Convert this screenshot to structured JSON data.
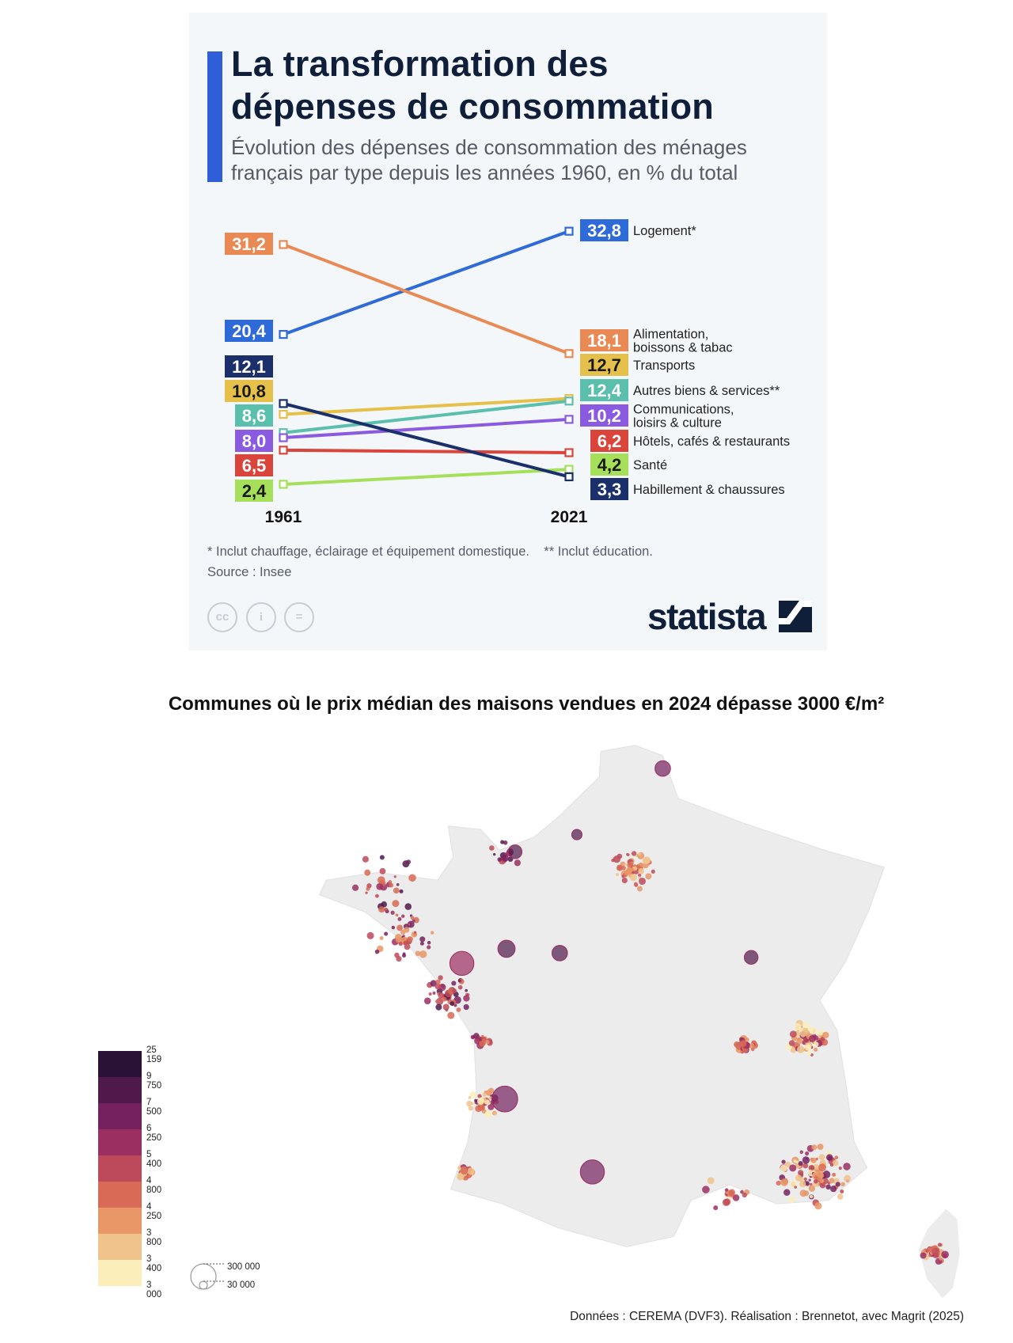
{
  "infographic": {
    "title_line1": "La transformation des",
    "title_line2": "dépenses de consommation",
    "subtitle_line1": "Évolution des dépenses de consommation des ménages",
    "subtitle_line2": "français par type depuis les années 1960, en % du total",
    "footnote": "* Inclut chauffage, éclairage et équipement domestique.    ** Inclut éducation.",
    "source": "Source : Insee",
    "license_icons": [
      "cc-icon",
      "by-icon",
      "nd-icon"
    ],
    "license_glyphs": [
      "cc",
      "i",
      "="
    ],
    "logo": "statista"
  },
  "chart_data": [
    {
      "type": "line",
      "subtype": "slope",
      "title": "La transformation des dépenses de consommation",
      "x": [
        "1961",
        "2021"
      ],
      "ylabel": "% du total",
      "series": [
        {
          "name": "Logement*",
          "values": [
            20.4,
            32.8
          ],
          "labels": [
            "20,4",
            "32,8"
          ],
          "color": "#2f6ad9",
          "text_color": "#ffffff"
        },
        {
          "name": "Alimentation, boissons & tabac",
          "values": [
            31.2,
            18.1
          ],
          "labels": [
            "31,2",
            "18,1"
          ],
          "color": "#e98a55",
          "text_color": "#ffffff"
        },
        {
          "name": "Transports",
          "values": [
            10.8,
            12.7
          ],
          "labels": [
            "10,8",
            "12,7"
          ],
          "color": "#e5c04a",
          "text_color": "#1a1a1a"
        },
        {
          "name": "Autres biens & services**",
          "values": [
            8.6,
            12.4
          ],
          "labels": [
            "8,6",
            "12,4"
          ],
          "color": "#5bbfae",
          "text_color": "#ffffff"
        },
        {
          "name": "Communications, loisirs & culture",
          "values": [
            8.0,
            10.2
          ],
          "labels": [
            "8,0",
            "10,2"
          ],
          "color": "#8a5ae0",
          "text_color": "#ffffff"
        },
        {
          "name": "Hôtels, cafés & restaurants",
          "values": [
            6.5,
            6.2
          ],
          "labels": [
            "6,5",
            "6,2"
          ],
          "color": "#d9453b",
          "text_color": "#ffffff"
        },
        {
          "name": "Santé",
          "values": [
            2.4,
            4.2
          ],
          "labels": [
            "2,4",
            "4,2"
          ],
          "color": "#a6e05a",
          "text_color": "#1a1a1a"
        },
        {
          "name": "Habillement & chaussures",
          "values": [
            12.1,
            3.3
          ],
          "labels": [
            "12,1",
            "3,3"
          ],
          "color": "#1b2f6b",
          "text_color": "#ffffff"
        }
      ],
      "right_label_lines": [
        [
          "Logement*"
        ],
        [
          "Alimentation,",
          "boissons & tabac"
        ],
        [
          "Transports"
        ],
        [
          "Autres biens & services**"
        ],
        [
          "Communications,",
          "loisirs & culture"
        ],
        [
          "Hôtels, cafés & restaurants"
        ],
        [
          "Santé"
        ],
        [
          "Habillement & chaussures"
        ]
      ]
    },
    {
      "type": "map",
      "title": "Communes où le prix médian des maisons vendues en 2024 dépasse 3000 €/m²",
      "color_legend": {
        "breaks": [
          "25 159",
          "9 750",
          "7 500",
          "6 250",
          "5 400",
          "4 800",
          "4 250",
          "3 800",
          "3 400",
          "3 000"
        ],
        "colors": [
          "#2a1136",
          "#4f1a4b",
          "#76215f",
          "#9c2f62",
          "#bd4a5a",
          "#d96a55",
          "#e99767",
          "#f0c38d",
          "#fbeeba"
        ]
      },
      "size_legend": [
        "300 000",
        "30 000"
      ]
    }
  ],
  "map": {
    "title": "Communes où le prix médian des maisons vendues en 2024 dépasse 3000 €/m²",
    "credits": "Données : CEREMA (DVF3). Réalisation : Brennetot, avec Magrit (2025)",
    "land_color": "#ececec"
  }
}
